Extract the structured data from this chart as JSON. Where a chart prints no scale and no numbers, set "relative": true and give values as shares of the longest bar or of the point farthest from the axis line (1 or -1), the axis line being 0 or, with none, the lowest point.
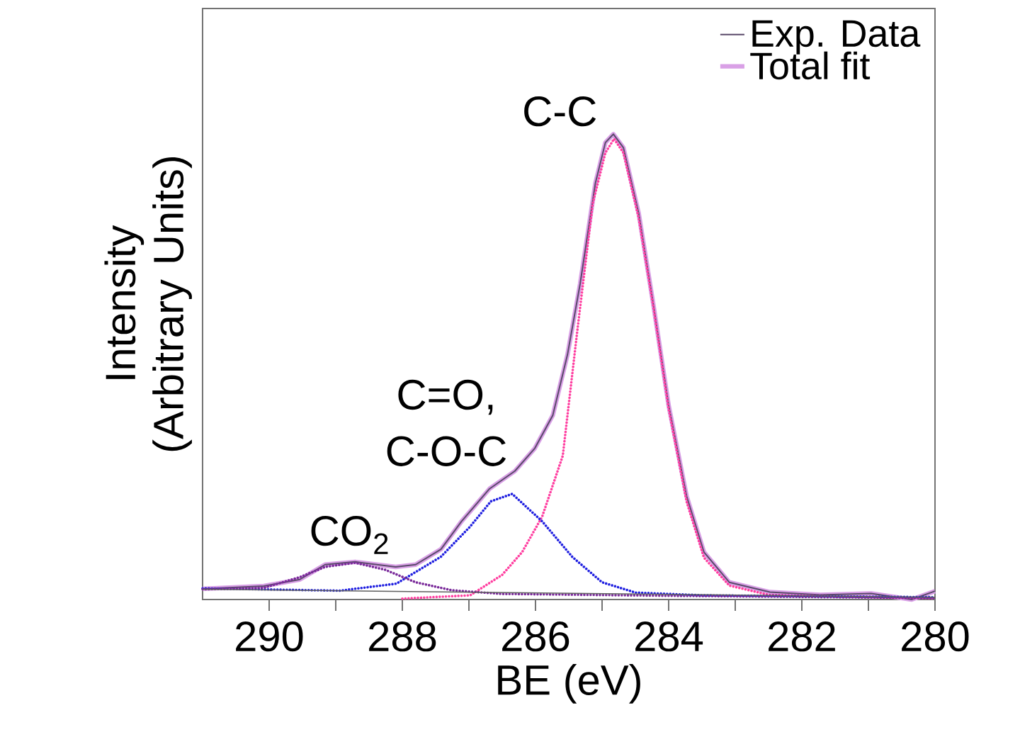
{
  "chart_data": {
    "type": "line",
    "xlabel": "BE (eV)",
    "ylabel": "Intensity (Arbitrary Units)",
    "relative": true,
    "xlim": [
      291,
      280
    ],
    "xticks": [
      290,
      {
        "value": 289,
        "label": null
      },
      288,
      {
        "value": 287,
        "label": null
      },
      286,
      {
        "value": 285,
        "label": null
      },
      284,
      {
        "value": 283,
        "label": null
      },
      282,
      {
        "value": 281,
        "label": null
      },
      280
    ],
    "legend": "top right",
    "grid": false,
    "marker": "none",
    "series": [
      {
        "name": "Total fit",
        "color": "#d9a0e6",
        "line_style": "solid",
        "x": [
          291.0,
          290.08,
          289.54,
          289.16,
          288.71,
          288.1,
          287.8,
          287.42,
          287.11,
          286.69,
          286.31,
          286.01,
          285.74,
          285.52,
          285.33,
          285.1,
          284.95,
          284.83,
          284.68,
          284.45,
          284.23,
          284.0,
          283.73,
          283.47,
          283.09,
          282.48,
          281.72,
          280.96,
          280.35,
          280.0
        ],
        "values": [
          0.023,
          0.029,
          0.043,
          0.075,
          0.081,
          0.07,
          0.075,
          0.108,
          0.168,
          0.238,
          0.276,
          0.325,
          0.396,
          0.526,
          0.678,
          0.895,
          0.982,
          1.0,
          0.971,
          0.83,
          0.634,
          0.417,
          0.222,
          0.102,
          0.037,
          0.016,
          0.01,
          0.013,
          0.0,
          0.018
        ]
      },
      {
        "name": "Exp. Data",
        "color": "#5a4a6a",
        "line_style": "solid",
        "x": [
          291.0,
          290.08,
          289.54,
          289.16,
          288.71,
          288.1,
          287.8,
          287.42,
          287.11,
          286.69,
          286.31,
          286.01,
          285.74,
          285.52,
          285.33,
          285.1,
          284.95,
          284.83,
          284.68,
          284.45,
          284.23,
          284.0,
          283.73,
          283.47,
          283.09,
          282.48,
          281.72,
          280.96,
          280.35,
          280.0
        ],
        "values": [
          0.023,
          0.029,
          0.043,
          0.075,
          0.081,
          0.07,
          0.075,
          0.108,
          0.168,
          0.238,
          0.276,
          0.325,
          0.396,
          0.526,
          0.678,
          0.895,
          0.982,
          1.0,
          0.971,
          0.83,
          0.634,
          0.417,
          0.222,
          0.102,
          0.037,
          0.016,
          0.01,
          0.013,
          0.0,
          0.018
        ]
      },
      {
        "color": "#ff3fa0",
        "line_style": "dotted",
        "x": [
          288.0,
          286.98,
          286.5,
          286.2,
          285.9,
          285.59,
          285.37,
          285.14,
          284.95,
          284.82,
          284.68,
          284.45,
          284.23,
          284.0,
          283.73,
          283.47,
          283.09,
          282.5,
          281.0,
          280.0
        ],
        "values": [
          0.002,
          0.009,
          0.053,
          0.102,
          0.178,
          0.309,
          0.58,
          0.851,
          0.96,
          0.99,
          0.96,
          0.82,
          0.63,
          0.41,
          0.21,
          0.09,
          0.03,
          0.01,
          0.005,
          0.003
        ]
      },
      {
        "color": "#2020e0",
        "line_style": "dotted",
        "x": [
          291.0,
          288.94,
          288.09,
          287.42,
          286.98,
          286.67,
          286.35,
          285.9,
          285.45,
          285.0,
          284.5,
          283.47,
          280.0
        ],
        "values": [
          0.024,
          0.019,
          0.034,
          0.092,
          0.157,
          0.211,
          0.227,
          0.168,
          0.092,
          0.037,
          0.015,
          0.009,
          0.005
        ]
      },
      {
        "color": "#7a2a9a",
        "line_style": "dotted",
        "x": [
          291.0,
          290.08,
          289.54,
          289.16,
          288.71,
          288.26,
          287.8,
          287.26,
          286.5,
          284.0,
          280.0
        ],
        "values": [
          0.022,
          0.025,
          0.048,
          0.07,
          0.079,
          0.064,
          0.037,
          0.02,
          0.012,
          0.008,
          0.003
        ]
      },
      {
        "color": "#606060",
        "line_style": "solid",
        "x": [
          291.0,
          280.0
        ],
        "values": [
          0.022,
          0.005
        ]
      }
    ],
    "annotations": [
      {
        "text": "C-C",
        "x": 284.83,
        "y": 1.0
      },
      {
        "text": "C=O, C-O-C",
        "x": 286.35,
        "y": 0.227
      },
      {
        "text": "CO$_{2}$",
        "x": 288.71,
        "y": 0.081
      }
    ]
  }
}
